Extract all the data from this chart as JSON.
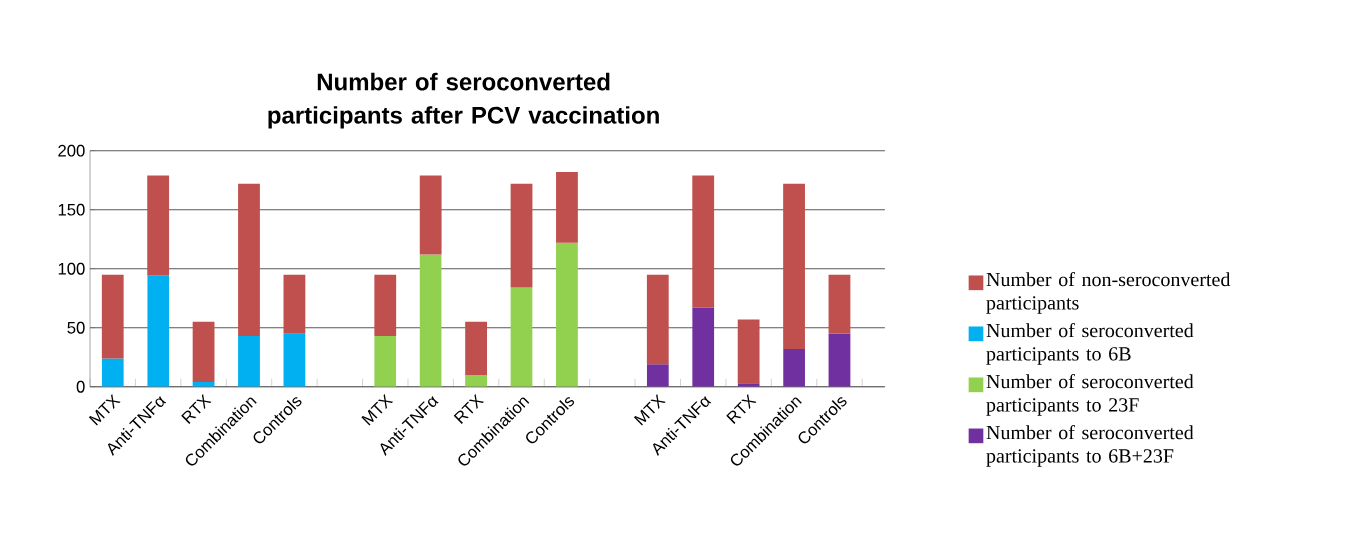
{
  "chart_data": {
    "type": "bar",
    "stacked": true,
    "title": "Number of seroconverted participants after PCV vaccination",
    "categories": [
      "MTX",
      "Anti-TNFα",
      "RTX",
      "Combination",
      "Controls",
      null,
      "MTX",
      "Anti-TNFα",
      "RTX",
      "Combination",
      "Controls",
      null,
      "MTX",
      "Anti-TNFα",
      "RTX",
      "Combination",
      "Controls"
    ],
    "series": [
      {
        "name": "Number of seroconverted participants to 6B",
        "color": "#00b0f0",
        "values": [
          24,
          94,
          4,
          43,
          45,
          null,
          null,
          null,
          null,
          null,
          null,
          null,
          null,
          null,
          null,
          null,
          null
        ]
      },
      {
        "name": "Number of seroconverted participants to 23F",
        "color": "#92d050",
        "values": [
          null,
          null,
          null,
          null,
          null,
          null,
          43,
          112,
          10,
          84,
          122,
          null,
          null,
          null,
          null,
          null,
          null
        ]
      },
      {
        "name": "Number of seroconverted participants to 6B+23F",
        "color": "#7030a0",
        "values": [
          null,
          null,
          null,
          null,
          null,
          null,
          null,
          null,
          null,
          null,
          null,
          null,
          19,
          67,
          3,
          32,
          45
        ]
      },
      {
        "name": "Number of non-seroconverted participants",
        "color": "#c0504d",
        "values": [
          71,
          85,
          51,
          129,
          50,
          null,
          52,
          67,
          45,
          88,
          60,
          null,
          76,
          112,
          54,
          140,
          50
        ]
      }
    ],
    "ylim": [
      0,
      200
    ],
    "yticks": [
      0,
      50,
      100,
      150,
      200
    ],
    "grid": "y",
    "legend": "right"
  }
}
